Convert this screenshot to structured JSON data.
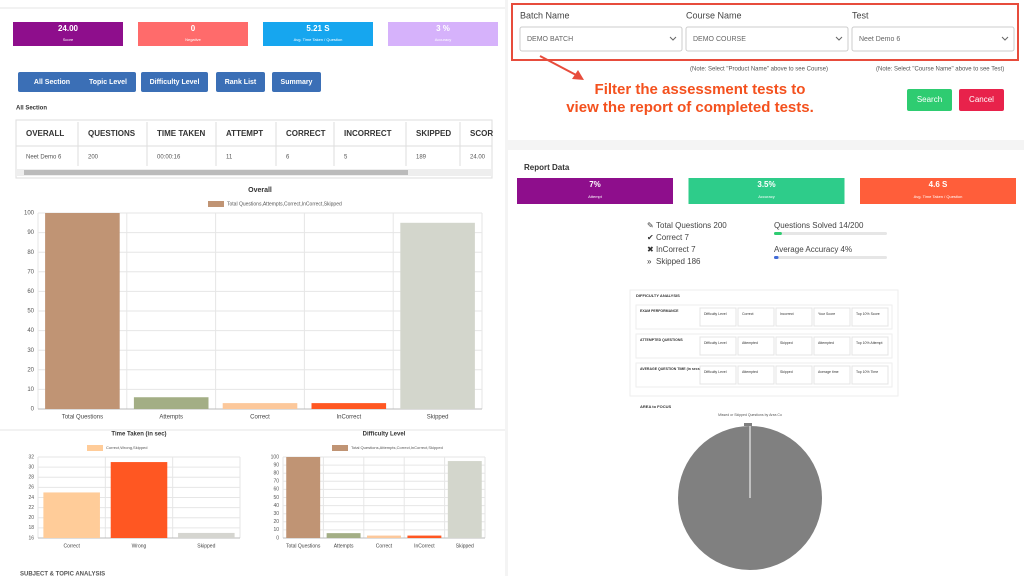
{
  "stats": [
    {
      "value": "24.00",
      "label": "Score",
      "color": "#8e0e8c"
    },
    {
      "value": "0",
      "label": "Negative",
      "color": "#ff6b6b"
    },
    {
      "value": "5.21 S",
      "label": "Avg. Time Taken / Question",
      "color": "#16a6ef"
    },
    {
      "value": "3 %",
      "label": "Accuracy",
      "color": "#d6b2fb"
    }
  ],
  "tabs": [
    "All Section",
    "Topic Level",
    "Difficulty Level",
    "Rank List",
    "Summary"
  ],
  "section_title": "All Section",
  "table": {
    "headers": [
      "OVERALL",
      "QUESTIONS",
      "TIME TAKEN",
      "ATTEMPT",
      "CORRECT",
      "INCORRECT",
      "SKIPPED",
      "SCOR"
    ],
    "rows": [
      [
        "Neet Demo 6",
        "200",
        "00:00:16",
        "11",
        "6",
        "5",
        "189",
        "24.00"
      ]
    ]
  },
  "filter": {
    "fields": [
      {
        "label": "Batch Name",
        "selected": "DEMO BATCH"
      },
      {
        "label": "Course Name",
        "selected": "DEMO COURSE"
      },
      {
        "label": "Test",
        "selected": "Neet Demo 6"
      }
    ],
    "notes": [
      "(Note: Select \"Product Name\" above to see Course)",
      "(Note: Select \"Course Name\" above to see Test)"
    ],
    "buttons": [
      "Search",
      "Cancel"
    ]
  },
  "annotation": [
    "Filter the assessment tests to",
    "view the report of completed tests."
  ],
  "report": {
    "title": "Report Data",
    "cards": [
      {
        "value": "7%",
        "label": "Attempt",
        "color": "#8e0e8c"
      },
      {
        "value": "3.5%",
        "label": "Accuracy",
        "color": "#2ecc8a"
      },
      {
        "value": "4.6 S",
        "label": "Avg. Time Taken / Question",
        "color": "#ff5e3a"
      }
    ],
    "summary": [
      "Total Questions 200",
      "Correct 7",
      "InCorrect 7",
      "Skipped 186"
    ],
    "progress": [
      {
        "label": "Questions Solved 14/200",
        "value": 7
      },
      {
        "label": "Average Accuracy 4%",
        "value": 4
      }
    ]
  },
  "difficulty_analysis": {
    "title": "DIFFICULTY ANALYSIS",
    "rows": [
      {
        "label": "EXAM PERFORMANCE",
        "cells": [
          "Difficulty Level",
          "Correct",
          "Incorrect",
          "Your Score",
          "Top 10% Score"
        ]
      },
      {
        "label": "ATTEMPTED QUESTIONS",
        "cells": [
          "Difficulty Level",
          "Attempted",
          "Skipped",
          "Attempted",
          "Top 10% Attempt"
        ]
      },
      {
        "label": "AVERAGE QUESTION TIME (in secs)",
        "cells": [
          "Difficulty Level",
          "Attempted",
          "Skipped",
          "Average time",
          "Top 10% Time"
        ]
      }
    ]
  },
  "area_title": "AREA to FOCUS",
  "footer": "SUBJECT & TOPIC ANALYSIS",
  "chart_data": [
    {
      "type": "bar",
      "title": "Overall",
      "legend": "Total Questions,Attempts,Correct,InCorrect,Skipped",
      "categories": [
        "Total Questions",
        "Attempts",
        "Correct",
        "InCorrect",
        "Skipped"
      ],
      "values": [
        100,
        6,
        3,
        3,
        95
      ],
      "colors": [
        "#c09474",
        "#a3ae85",
        "#fcc89b",
        "#ff5722",
        "#d3d6cc"
      ],
      "ylim": [
        0,
        100
      ],
      "yticks": [
        0,
        10,
        20,
        30,
        40,
        50,
        60,
        70,
        80,
        90,
        100
      ],
      "grid": true
    },
    {
      "type": "bar",
      "title": "Time Taken (in sec)",
      "legend": "Correct,Wrong,Skipped",
      "categories": [
        "Correct",
        "Wrong",
        "Skipped"
      ],
      "values": [
        25,
        31,
        17
      ],
      "colors": [
        "#ffcc99",
        "#ff5722",
        "#d5d5d0"
      ],
      "ylim": [
        16,
        32
      ],
      "yticks": [
        16,
        18,
        20,
        22,
        24,
        26,
        28,
        30,
        32
      ],
      "grid": true
    },
    {
      "type": "bar",
      "title": "Difficulty Level",
      "legend": "Total Questions,Attempts,Correct,InCorrect,Skipped",
      "categories": [
        "Total Questions",
        "Attempts",
        "Correct",
        "InCorrect",
        "Skipped"
      ],
      "values": [
        100,
        6,
        3,
        3,
        95
      ],
      "colors": [
        "#c09474",
        "#a3ae85",
        "#fcc89b",
        "#ff5722",
        "#d3d6cc"
      ],
      "ylim": [
        0,
        100
      ],
      "yticks": [
        0,
        10,
        20,
        30,
        40,
        50,
        60,
        70,
        80,
        90,
        100
      ],
      "grid": true
    },
    {
      "type": "pie",
      "title": "Missed or Skipped Questions by Area Co",
      "values": [
        100
      ],
      "colors": [
        "#808080"
      ]
    }
  ]
}
